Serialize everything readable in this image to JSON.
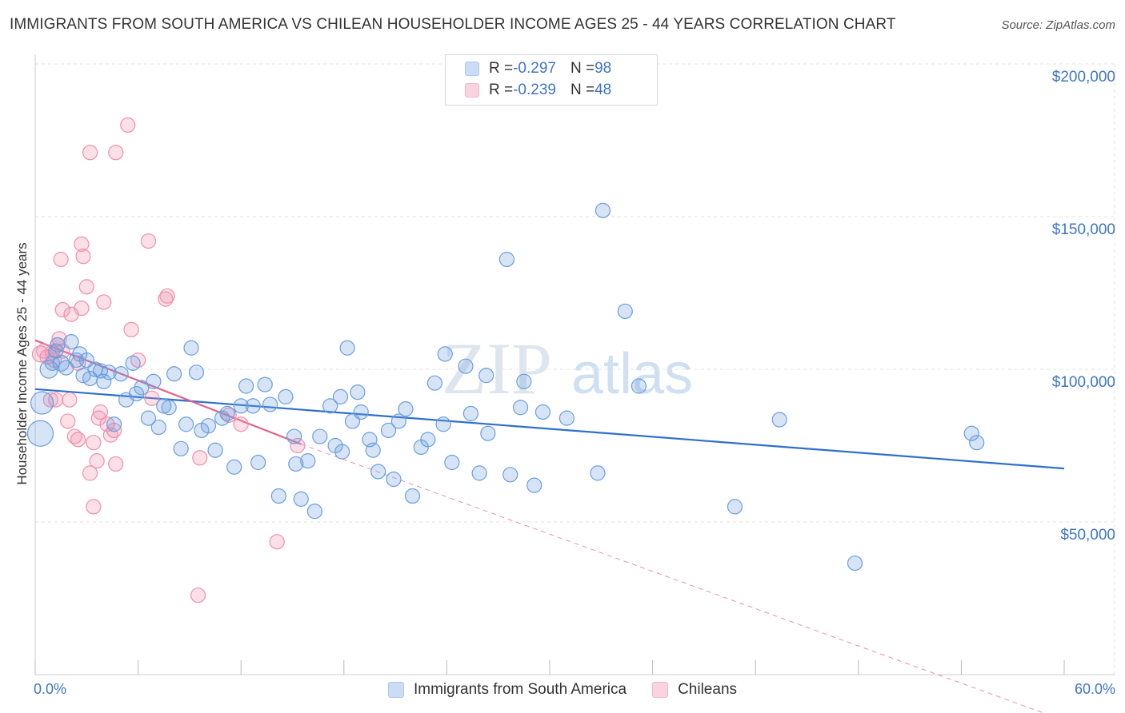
{
  "title": "IMMIGRANTS FROM SOUTH AMERICA VS CHILEAN HOUSEHOLDER INCOME AGES 25 - 44 YEARS CORRELATION CHART",
  "source": "Source: ZipAtlas.com",
  "watermark": {
    "zip": "ZIP",
    "atlas": "atlas"
  },
  "stats": [
    {
      "r_label": "R = ",
      "r_value": "-0.297",
      "n_label": "N = ",
      "n_value": "98",
      "color": "#a9c7ef"
    },
    {
      "r_label": "R = ",
      "r_value": "-0.239",
      "n_label": "N = ",
      "n_value": "48",
      "color": "#f5b6c9"
    }
  ],
  "legend": [
    {
      "label": "Immigrants from South America",
      "color": "#a9c7ef"
    },
    {
      "label": "Chileans",
      "color": "#f5b6c9"
    }
  ],
  "chart_data": {
    "type": "scatter",
    "title": "IMMIGRANTS FROM SOUTH AMERICA VS CHILEAN HOUSEHOLDER INCOME AGES 25 - 44 YEARS CORRELATION CHART",
    "xlabel": "",
    "ylabel": "Householder Income Ages 25 - 44 years",
    "xlim": [
      0,
      60
    ],
    "ylim": [
      0,
      210000
    ],
    "x_tick_labels": [
      "0.0%",
      "60.0%"
    ],
    "y_ticks": [
      50000,
      100000,
      150000,
      200000
    ],
    "y_tick_labels": [
      "$50,000",
      "$100,000",
      "$150,000",
      "$200,000"
    ],
    "grid": true,
    "series": [
      {
        "name": "Immigrants from South America",
        "color": "#6a9fe0",
        "trend": {
          "x0": 0,
          "y0": 93500,
          "x1": 60,
          "y1": 67500,
          "color": "#2f6fcc"
        },
        "points": [
          [
            0.3,
            79000,
            16
          ],
          [
            0.4,
            89000,
            14
          ],
          [
            0.8,
            100000,
            11
          ],
          [
            1.0,
            102000,
            9
          ],
          [
            1.2,
            106000,
            9
          ],
          [
            1.3,
            108000,
            9
          ],
          [
            1.5,
            102000,
            10
          ],
          [
            1.8,
            100500,
            9
          ],
          [
            2.1,
            109000,
            9
          ],
          [
            2.4,
            103000,
            9
          ],
          [
            2.6,
            105000,
            9
          ],
          [
            2.8,
            98000,
            9
          ],
          [
            3.0,
            103000,
            9
          ],
          [
            3.2,
            97000,
            9
          ],
          [
            3.5,
            100000,
            9
          ],
          [
            3.8,
            99500,
            9
          ],
          [
            4.0,
            96000,
            9
          ],
          [
            4.3,
            99000,
            9
          ],
          [
            4.6,
            82000,
            9
          ],
          [
            5.0,
            98500,
            9
          ],
          [
            5.3,
            90000,
            9
          ],
          [
            5.7,
            102000,
            9
          ],
          [
            5.9,
            92000,
            9
          ],
          [
            6.2,
            94000,
            9
          ],
          [
            6.6,
            84000,
            9
          ],
          [
            6.9,
            96000,
            9
          ],
          [
            7.2,
            81000,
            9
          ],
          [
            7.5,
            88000,
            9
          ],
          [
            7.8,
            87500,
            9
          ],
          [
            8.1,
            98500,
            9
          ],
          [
            8.5,
            74000,
            9
          ],
          [
            8.8,
            82000,
            9
          ],
          [
            9.1,
            107000,
            9
          ],
          [
            9.4,
            99000,
            9
          ],
          [
            9.7,
            80000,
            9
          ],
          [
            10.1,
            81500,
            9
          ],
          [
            10.5,
            73500,
            9
          ],
          [
            10.9,
            84000,
            9
          ],
          [
            11.2,
            85500,
            9
          ],
          [
            11.6,
            68000,
            9
          ],
          [
            12.0,
            88000,
            9
          ],
          [
            12.3,
            94500,
            9
          ],
          [
            12.7,
            88000,
            9
          ],
          [
            13.0,
            69500,
            9
          ],
          [
            13.4,
            95000,
            9
          ],
          [
            13.7,
            88500,
            9
          ],
          [
            14.2,
            58500,
            9
          ],
          [
            14.6,
            91000,
            9
          ],
          [
            15.1,
            78000,
            9
          ],
          [
            15.2,
            69000,
            9
          ],
          [
            15.5,
            57500,
            9
          ],
          [
            15.9,
            70000,
            9
          ],
          [
            16.3,
            53500,
            9
          ],
          [
            16.6,
            78000,
            9
          ],
          [
            17.2,
            88000,
            9
          ],
          [
            17.5,
            75000,
            9
          ],
          [
            17.8,
            91000,
            9
          ],
          [
            17.9,
            73000,
            9
          ],
          [
            18.2,
            107000,
            9
          ],
          [
            18.5,
            83000,
            9
          ],
          [
            18.8,
            92500,
            9
          ],
          [
            19.0,
            86000,
            9
          ],
          [
            19.5,
            77000,
            9
          ],
          [
            19.7,
            73500,
            9
          ],
          [
            20.0,
            66500,
            9
          ],
          [
            20.6,
            80000,
            9
          ],
          [
            20.9,
            64000,
            9
          ],
          [
            21.2,
            83000,
            9
          ],
          [
            21.6,
            87000,
            9
          ],
          [
            22.0,
            58500,
            9
          ],
          [
            22.5,
            74500,
            9
          ],
          [
            22.9,
            77000,
            9
          ],
          [
            23.3,
            95500,
            9
          ],
          [
            23.8,
            82000,
            9
          ],
          [
            23.9,
            105000,
            9
          ],
          [
            24.3,
            69500,
            9
          ],
          [
            25.1,
            101000,
            9
          ],
          [
            25.4,
            85500,
            9
          ],
          [
            25.9,
            66000,
            9
          ],
          [
            26.3,
            98000,
            9
          ],
          [
            26.4,
            79000,
            9
          ],
          [
            27.5,
            136000,
            9
          ],
          [
            27.7,
            65500,
            9
          ],
          [
            28.3,
            87500,
            9
          ],
          [
            28.5,
            96000,
            9
          ],
          [
            29.1,
            62000,
            9
          ],
          [
            29.6,
            86000,
            9
          ],
          [
            31.0,
            84000,
            9
          ],
          [
            32.8,
            66000,
            9
          ],
          [
            33.1,
            152000,
            9
          ],
          [
            34.4,
            119000,
            9
          ],
          [
            35.2,
            94500,
            9
          ],
          [
            40.8,
            55000,
            9
          ],
          [
            43.4,
            83500,
            9
          ],
          [
            47.8,
            36500,
            9
          ],
          [
            54.6,
            79000,
            9
          ],
          [
            54.9,
            76000,
            9
          ]
        ]
      },
      {
        "name": "Chileans",
        "color": "#ef8fae",
        "trend": {
          "x0": 0,
          "y0": 109500,
          "x1": 15.5,
          "y1": 75500,
          "color": "#e0628d",
          "dashed_to": [
            60,
            -15000
          ]
        },
        "points": [
          [
            0.3,
            105000,
            10
          ],
          [
            0.5,
            106000,
            9
          ],
          [
            0.7,
            104000,
            9
          ],
          [
            0.9,
            90000,
            9
          ],
          [
            1.0,
            105500,
            9
          ],
          [
            1.1,
            103000,
            9
          ],
          [
            1.2,
            90000,
            9
          ],
          [
            1.3,
            108000,
            9
          ],
          [
            1.4,
            110000,
            9
          ],
          [
            1.5,
            136000,
            9
          ],
          [
            1.6,
            106000,
            9
          ],
          [
            1.6,
            119500,
            9
          ],
          [
            1.9,
            83000,
            9
          ],
          [
            2.0,
            90000,
            9
          ],
          [
            2.1,
            118000,
            9
          ],
          [
            2.3,
            78000,
            9
          ],
          [
            2.5,
            102000,
            9
          ],
          [
            2.5,
            77000,
            9
          ],
          [
            2.7,
            120000,
            9
          ],
          [
            2.7,
            141000,
            9
          ],
          [
            2.8,
            137000,
            9
          ],
          [
            3.0,
            127000,
            9
          ],
          [
            3.2,
            66000,
            9
          ],
          [
            3.2,
            171000,
            9
          ],
          [
            3.4,
            76000,
            9
          ],
          [
            3.4,
            55000,
            9
          ],
          [
            3.6,
            70000,
            9
          ],
          [
            3.7,
            84000,
            9
          ],
          [
            3.8,
            86000,
            9
          ],
          [
            4.0,
            122000,
            9
          ],
          [
            4.2,
            82000,
            9
          ],
          [
            4.4,
            78500,
            9
          ],
          [
            4.6,
            80000,
            9
          ],
          [
            4.7,
            69000,
            9
          ],
          [
            4.7,
            171000,
            9
          ],
          [
            5.4,
            180000,
            9
          ],
          [
            5.6,
            113000,
            9
          ],
          [
            6.0,
            103000,
            9
          ],
          [
            6.6,
            142000,
            9
          ],
          [
            6.8,
            90500,
            9
          ],
          [
            7.6,
            123000,
            9
          ],
          [
            7.7,
            124000,
            9
          ],
          [
            9.5,
            26000,
            9
          ],
          [
            9.6,
            71000,
            9
          ],
          [
            11.3,
            85000,
            9
          ],
          [
            12.0,
            82000,
            9
          ],
          [
            14.1,
            43500,
            9
          ],
          [
            15.3,
            75000,
            9
          ]
        ]
      }
    ]
  }
}
